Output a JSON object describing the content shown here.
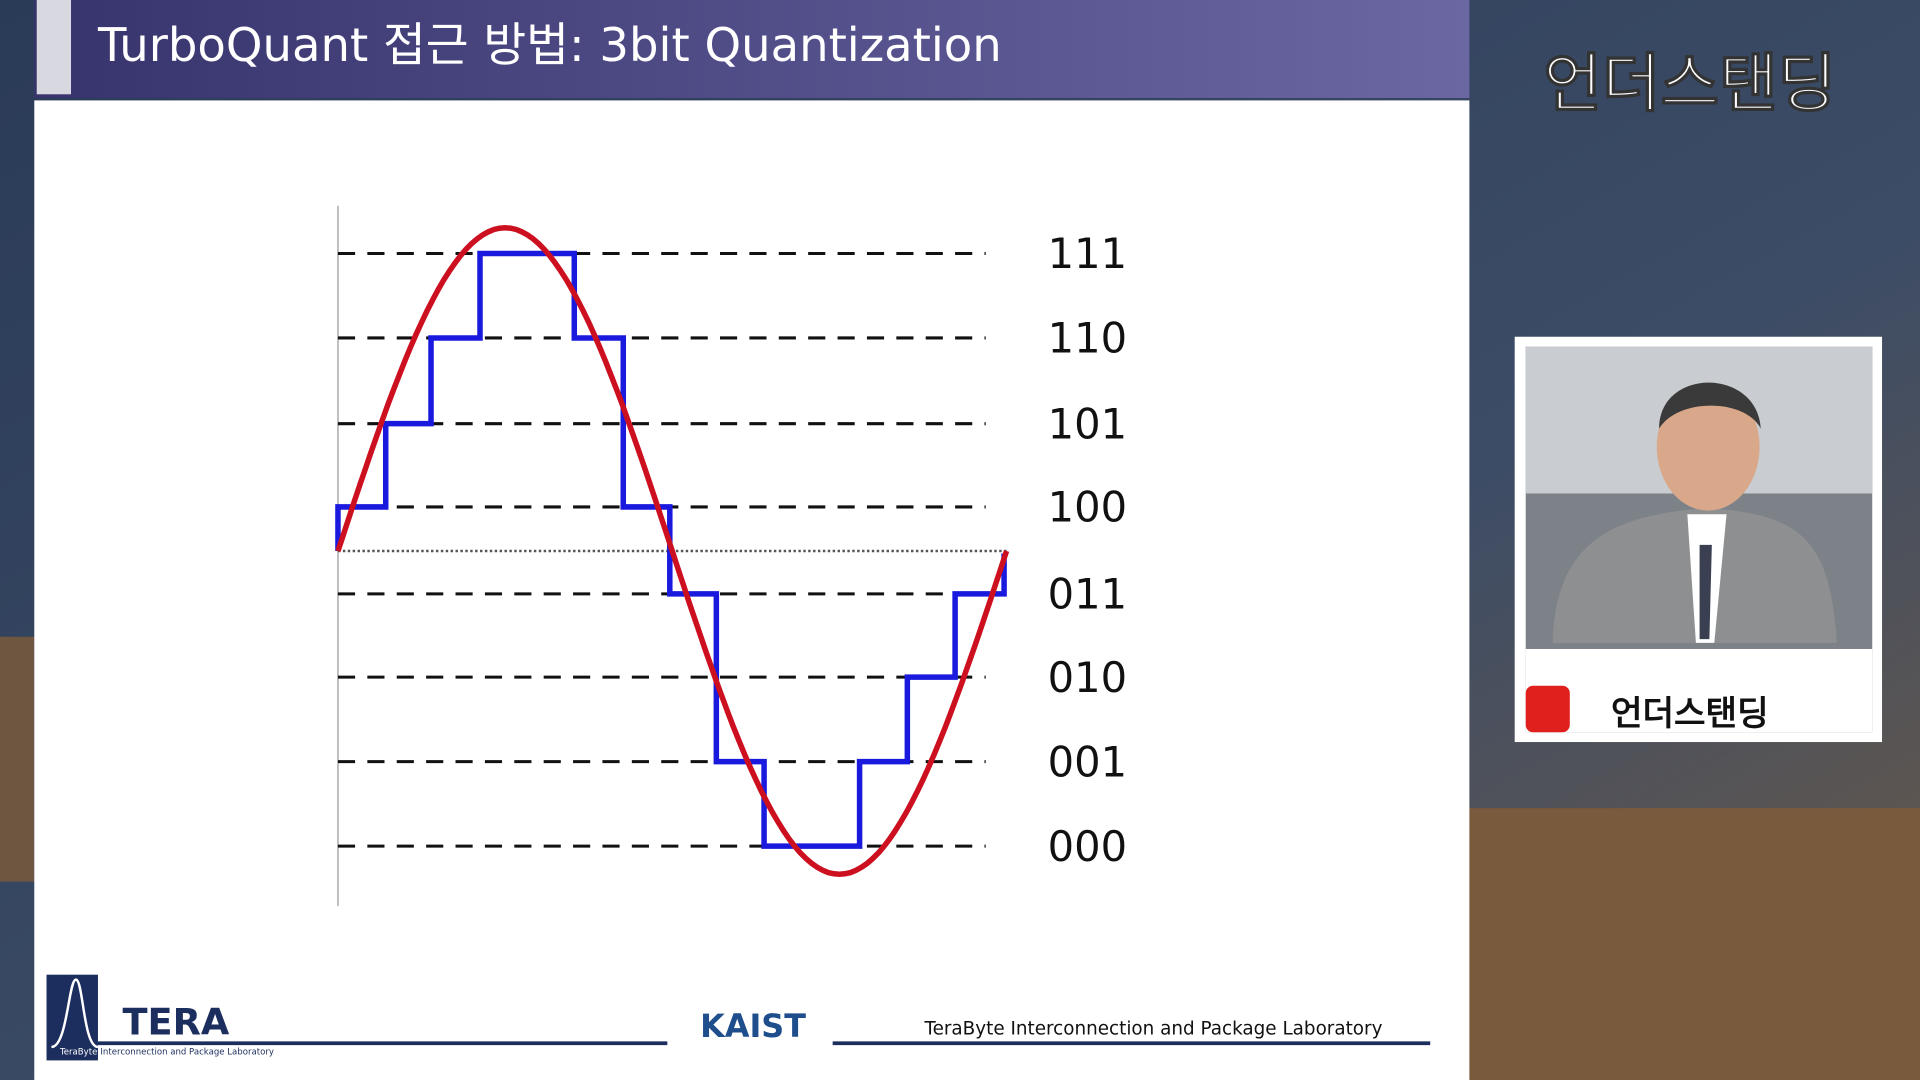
{
  "slide": {
    "title": "TurboQuant 접근 방법: 3bit Quantization",
    "level_labels": [
      "111",
      "110",
      "101",
      "100",
      "011",
      "010",
      "001",
      "000"
    ],
    "logo_text": "TERA",
    "logo_small": "TeraByte",
    "logo_subtitle": "Interconnection and Package Laboratory",
    "university": "KAIST",
    "footer": "TeraByte Interconnection and Package Laboratory"
  },
  "channel": {
    "name": "언더스탠딩",
    "inset_banner": "언더스탠딩"
  }
}
